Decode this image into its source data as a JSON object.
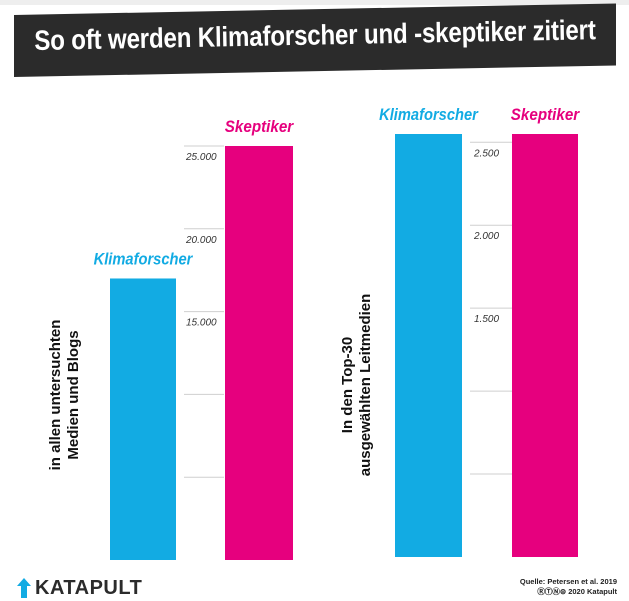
{
  "title": "So oft werden Klimaforscher und -skeptiker zitiert",
  "colors": {
    "klimaforscher": "#12abe3",
    "skeptiker": "#e6007e",
    "banner": "#2b2b2b",
    "grid": "#cfcfcf",
    "axis_text": "#333333"
  },
  "chart_data": [
    {
      "type": "bar",
      "ylabel": "in allen untersuchten Medien und Blogs",
      "categories": [
        "Klimaforscher",
        "Skeptiker"
      ],
      "values": [
        17000,
        25000
      ],
      "ylim": [
        0,
        25000
      ],
      "yticks": [
        5000,
        10000,
        15000,
        20000,
        25000
      ],
      "ytick_labels": [
        "",
        "",
        "15.000",
        "20.000",
        "25.000"
      ]
    },
    {
      "type": "bar",
      "ylabel": "In den Top-30 ausgewählten Leitmedien",
      "categories": [
        "Klimaforscher",
        "Skeptiker"
      ],
      "values": [
        2550,
        2550
      ],
      "ylim": [
        0,
        2550
      ],
      "yticks": [
        500,
        1000,
        1500,
        2000,
        2500
      ],
      "ytick_labels": [
        "",
        "",
        "1.500",
        "2.000",
        "2.500"
      ]
    }
  ],
  "footer": {
    "logo": "KATAPULT",
    "source_line1": "Quelle: Petersen et al. 2019",
    "source_line2": "2020 Katapult",
    "license_icons": [
      "cc-icon",
      "by-icon",
      "nc-icon",
      "nd-icon"
    ]
  }
}
